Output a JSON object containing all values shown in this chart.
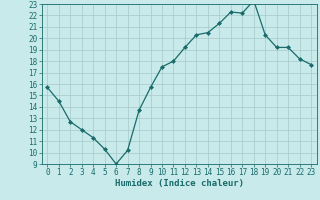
{
  "x": [
    0,
    1,
    2,
    3,
    4,
    5,
    6,
    7,
    8,
    9,
    10,
    11,
    12,
    13,
    14,
    15,
    16,
    17,
    18,
    19,
    20,
    21,
    22,
    23
  ],
  "y": [
    15.7,
    14.5,
    12.7,
    12.0,
    11.3,
    10.3,
    9.0,
    10.2,
    13.7,
    15.7,
    17.5,
    18.0,
    19.2,
    20.3,
    20.5,
    21.3,
    22.3,
    22.2,
    23.3,
    20.3,
    19.2,
    19.2,
    18.2,
    17.7
  ],
  "line_color": "#1a6b6b",
  "marker": "D",
  "marker_size": 2,
  "bg_color": "#c8eaea",
  "grid_color": "#a8c8c8",
  "xlabel": "Humidex (Indice chaleur)",
  "ylim": [
    9,
    23
  ],
  "xlim": [
    -0.5,
    23.5
  ],
  "yticks": [
    9,
    10,
    11,
    12,
    13,
    14,
    15,
    16,
    17,
    18,
    19,
    20,
    21,
    22,
    23
  ],
  "xticks": [
    0,
    1,
    2,
    3,
    4,
    5,
    6,
    7,
    8,
    9,
    10,
    11,
    12,
    13,
    14,
    15,
    16,
    17,
    18,
    19,
    20,
    21,
    22,
    23
  ],
  "tick_fontsize": 5.5,
  "xlabel_fontsize": 6.5
}
